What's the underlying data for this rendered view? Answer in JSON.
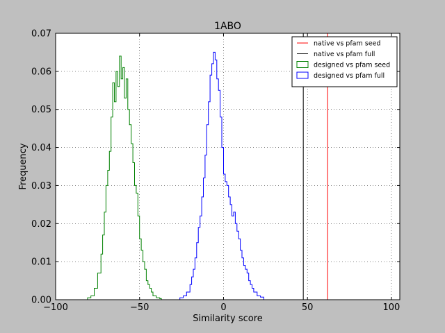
{
  "chart_data": {
    "type": "histogram",
    "title": "1ABO",
    "xlabel": "Similarity score",
    "ylabel": "Frequency",
    "xlim": [
      -100,
      105
    ],
    "ylim": [
      0,
      0.07
    ],
    "x_ticks": [
      -100,
      -50,
      0,
      50,
      100
    ],
    "x_tick_labels": [
      "−100",
      "−50",
      "0",
      "50",
      "100"
    ],
    "y_ticks": [
      0.0,
      0.01,
      0.02,
      0.03,
      0.04,
      0.05,
      0.06,
      0.07
    ],
    "y_tick_labels": [
      "0.00",
      "0.01",
      "0.02",
      "0.03",
      "0.04",
      "0.05",
      "0.06",
      "0.07"
    ],
    "grid": true,
    "legend_position": "top-right",
    "legend": [
      {
        "label": "native vs pfam seed",
        "style": "line",
        "color": "#ff0000"
      },
      {
        "label": "native vs pfam full",
        "style": "line",
        "color": "#000000"
      },
      {
        "label": "designed vs pfam seed",
        "style": "box",
        "color": "#008000"
      },
      {
        "label": "designed vs pfam full",
        "style": "box",
        "color": "#0000ff"
      }
    ],
    "vlines": [
      {
        "x": 62,
        "color": "#ff0000"
      },
      {
        "x": 47.5,
        "color": "#000000"
      }
    ],
    "series": [
      {
        "color": "#008000",
        "x": [
          -81,
          -79,
          -77,
          -75,
          -73,
          -72,
          -71,
          -70,
          -69,
          -68,
          -67,
          -66,
          -65,
          -64,
          -63,
          -62,
          -61,
          -60,
          -59,
          -58,
          -57,
          -56,
          -55,
          -54,
          -53,
          -52,
          -51,
          -50,
          -49,
          -48,
          -47,
          -46,
          -45,
          -44,
          -43,
          -42,
          -40,
          -38,
          -37
        ],
        "y": [
          0.0005,
          0.001,
          0.003,
          0.007,
          0.012,
          0.017,
          0.023,
          0.03,
          0.034,
          0.039,
          0.048,
          0.057,
          0.052,
          0.06,
          0.056,
          0.064,
          0.058,
          0.061,
          0.053,
          0.058,
          0.05,
          0.046,
          0.041,
          0.036,
          0.03,
          0.028,
          0.022,
          0.016,
          0.013,
          0.01,
          0.008,
          0.005,
          0.004,
          0.003,
          0.002,
          0.001,
          0.0005,
          0.0003,
          0.0
        ]
      },
      {
        "color": "#0000ff",
        "x": [
          -26,
          -24,
          -22,
          -20,
          -19,
          -18,
          -17,
          -16,
          -15,
          -14,
          -13,
          -12,
          -11,
          -10,
          -9,
          -8,
          -7,
          -6,
          -5,
          -4,
          -3,
          -2,
          -1,
          0,
          1,
          2,
          3,
          4,
          5,
          6,
          7,
          8,
          9,
          10,
          11,
          12,
          13,
          14,
          15,
          16,
          17,
          18,
          20,
          22,
          24
        ],
        "y": [
          0.0005,
          0.001,
          0.002,
          0.004,
          0.006,
          0.008,
          0.011,
          0.015,
          0.019,
          0.022,
          0.027,
          0.032,
          0.038,
          0.046,
          0.052,
          0.059,
          0.062,
          0.065,
          0.063,
          0.058,
          0.055,
          0.048,
          0.04,
          0.033,
          0.031,
          0.03,
          0.027,
          0.025,
          0.022,
          0.023,
          0.02,
          0.018,
          0.016,
          0.013,
          0.011,
          0.009,
          0.008,
          0.007,
          0.005,
          0.004,
          0.003,
          0.002,
          0.001,
          0.0007,
          0.0
        ]
      }
    ]
  }
}
